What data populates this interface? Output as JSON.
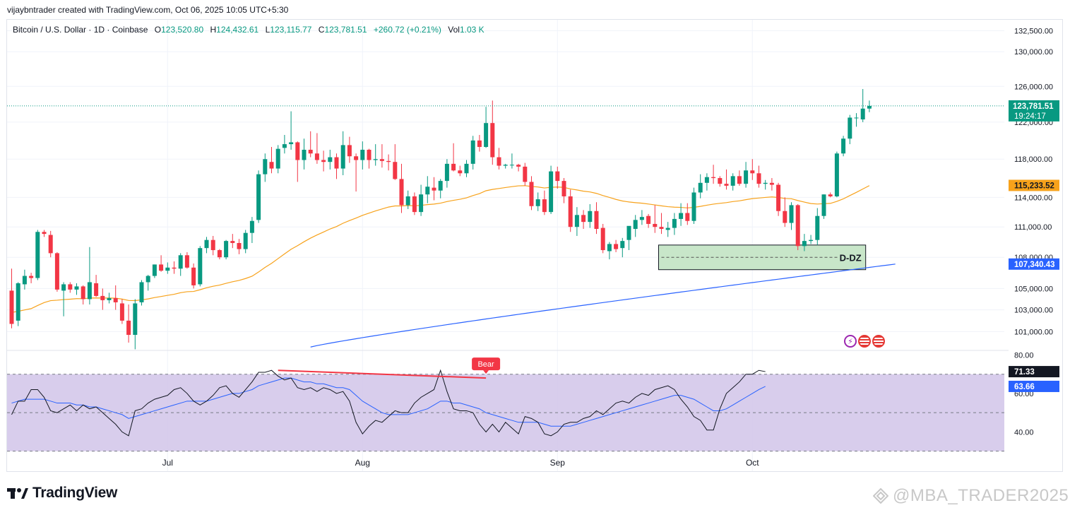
{
  "header": {
    "credit": "vijaybntrader created with TradingView.com, Oct 06, 2025 10:05 UTC+5:30"
  },
  "legend": {
    "symbol": "Bitcoin / U.S. Dollar · 1D · Coinbase",
    "o_label": "O",
    "o": "123,520.80",
    "h_label": "H",
    "h": "124,432.61",
    "l_label": "L",
    "l": "123,115.77",
    "c_label": "C",
    "c": "123,781.51",
    "change": "+260.72 (+0.21%)",
    "vol_label": "Vol",
    "vol": "1.03 K"
  },
  "colors": {
    "up": "#089981",
    "down": "#f23645",
    "ema50": "#f7a21b",
    "ema200": "#2962ff",
    "rsi": "#131722",
    "rsi_ma": "#2962ff",
    "rsi_band": "#d1c4e9",
    "bear": "#f23645"
  },
  "chart_data": {
    "type": "candlestick",
    "price_axis": {
      "ticks": [
        132500,
        130000,
        126000,
        122000,
        118000,
        114000,
        111000,
        108000,
        105000,
        103000,
        101000
      ],
      "tick_labels": [
        "132,500.00",
        "130,000.00",
        "126,000.00",
        "122,000.00",
        "118,000.00",
        "114,000.00",
        "111,000.00",
        "108,000.00",
        "105,000.00",
        "103,000.00",
        "101,000.00"
      ],
      "scale": "log",
      "range": [
        99300,
        133800
      ]
    },
    "x_axis": {
      "labels": [
        "Jul",
        "Aug",
        "Sep",
        "Oct"
      ],
      "label_bar_index": [
        24,
        54,
        84,
        114
      ]
    },
    "candles": [
      [
        104800,
        106900,
        101300,
        101700
      ],
      [
        102000,
        105600,
        101500,
        105500
      ],
      [
        105400,
        106800,
        104900,
        106200
      ],
      [
        106200,
        106500,
        105500,
        106000
      ],
      [
        106000,
        110700,
        105800,
        110500
      ],
      [
        110500,
        110700,
        110000,
        110300
      ],
      [
        110200,
        110600,
        108000,
        108400
      ],
      [
        108400,
        108500,
        104700,
        104900
      ],
      [
        104800,
        105600,
        102400,
        105400
      ],
      [
        105400,
        105600,
        104600,
        104900
      ],
      [
        104900,
        105500,
        104400,
        105200
      ],
      [
        105200,
        105300,
        103500,
        104000
      ],
      [
        104000,
        109000,
        103500,
        105600
      ],
      [
        105500,
        106300,
        104200,
        104300
      ],
      [
        104300,
        105000,
        103000,
        103900
      ],
      [
        103900,
        104600,
        103600,
        104100
      ],
      [
        104100,
        105300,
        103000,
        103700
      ],
      [
        103600,
        104000,
        101700,
        102000
      ],
      [
        102000,
        103500,
        100000,
        100700
      ],
      [
        100700,
        104000,
        99400,
        103600
      ],
      [
        103700,
        105800,
        103400,
        105600
      ],
      [
        105600,
        106300,
        104800,
        106200
      ],
      [
        106200,
        107300,
        106000,
        107300
      ],
      [
        107300,
        108200,
        106600,
        106700
      ],
      [
        106700,
        107500,
        106400,
        107000
      ],
      [
        107000,
        107600,
        106400,
        106900
      ],
      [
        106900,
        108400,
        106200,
        108200
      ],
      [
        108200,
        108500,
        106900,
        107000
      ],
      [
        107000,
        107400,
        105000,
        105300
      ],
      [
        105400,
        109100,
        105200,
        108900
      ],
      [
        108900,
        110000,
        108400,
        109700
      ],
      [
        109700,
        110100,
        108200,
        108700
      ],
      [
        108700,
        108800,
        107800,
        108000
      ],
      [
        108000,
        109700,
        107800,
        109600
      ],
      [
        109600,
        110300,
        108900,
        109400
      ],
      [
        109400,
        109800,
        108300,
        108800
      ],
      [
        108800,
        110700,
        108400,
        110400
      ],
      [
        110400,
        112000,
        109400,
        111600
      ],
      [
        111700,
        116800,
        111400,
        116400
      ],
      [
        116400,
        118600,
        115600,
        118000
      ],
      [
        117700,
        119300,
        116500,
        117000
      ],
      [
        117000,
        119500,
        116500,
        119100
      ],
      [
        119200,
        120600,
        118600,
        119600
      ],
      [
        119600,
        123200,
        119000,
        119800
      ],
      [
        119800,
        119900,
        115600,
        117900
      ],
      [
        117900,
        120200,
        116900,
        119000
      ],
      [
        119000,
        121000,
        118200,
        118600
      ],
      [
        118600,
        120800,
        117500,
        117900
      ],
      [
        117900,
        118900,
        116700,
        117700
      ],
      [
        117700,
        119000,
        116900,
        118200
      ],
      [
        118200,
        118600,
        115900,
        117000
      ],
      [
        117000,
        121000,
        116300,
        119500
      ],
      [
        119500,
        120400,
        117600,
        118300
      ],
      [
        118300,
        118600,
        114600,
        117900
      ],
      [
        117900,
        119900,
        116900,
        119000
      ],
      [
        119000,
        119100,
        117000,
        117900
      ],
      [
        117900,
        119600,
        117300,
        118000
      ],
      [
        118000,
        119600,
        117100,
        117800
      ],
      [
        117800,
        118500,
        116800,
        117700
      ],
      [
        117700,
        119600,
        115800,
        115900
      ],
      [
        115900,
        117500,
        112400,
        113200
      ],
      [
        113200,
        114700,
        112800,
        114100
      ],
      [
        114100,
        114500,
        112200,
        112500
      ],
      [
        112500,
        115300,
        112100,
        114300
      ],
      [
        114300,
        116200,
        113400,
        115100
      ],
      [
        115000,
        116100,
        113700,
        114700
      ],
      [
        114700,
        115900,
        113900,
        115700
      ],
      [
        115700,
        118000,
        115000,
        117500
      ],
      [
        117500,
        119700,
        116700,
        116800
      ],
      [
        116800,
        117300,
        116200,
        116500
      ],
      [
        116500,
        117900,
        116100,
        117500
      ],
      [
        117500,
        120500,
        116900,
        120000
      ],
      [
        120000,
        120600,
        118800,
        119300
      ],
      [
        119300,
        123700,
        119200,
        121900
      ],
      [
        121900,
        124400,
        117400,
        118200
      ],
      [
        118200,
        119200,
        116900,
        117300
      ],
      [
        117300,
        117500,
        117000,
        117400
      ],
      [
        117400,
        118600,
        117000,
        117400
      ],
      [
        117400,
        117500,
        116700,
        117200
      ],
      [
        117200,
        117600,
        115200,
        115600
      ],
      [
        115600,
        116200,
        112700,
        113100
      ],
      [
        113100,
        114500,
        112600,
        113800
      ],
      [
        113800,
        114700,
        112200,
        112500
      ],
      [
        112500,
        117300,
        112300,
        116700
      ],
      [
        116700,
        117200,
        114900,
        115700
      ],
      [
        115700,
        116000,
        113400,
        114100
      ],
      [
        114100,
        114800,
        110500,
        111000
      ],
      [
        111000,
        113000,
        110100,
        112200
      ],
      [
        112200,
        112700,
        110800,
        111500
      ],
      [
        111500,
        113300,
        110900,
        112600
      ],
      [
        112600,
        113500,
        110300,
        110800
      ],
      [
        110900,
        111300,
        108400,
        108700
      ],
      [
        108600,
        109500,
        107800,
        109300
      ],
      [
        109300,
        109700,
        108500,
        108800
      ],
      [
        108900,
        109900,
        108000,
        109600
      ],
      [
        109700,
        111000,
        108700,
        111100
      ],
      [
        110800,
        112200,
        110000,
        111700
      ],
      [
        111700,
        112700,
        111200,
        112000
      ],
      [
        112100,
        112300,
        110900,
        111300
      ],
      [
        111300,
        113200,
        110400,
        111000
      ],
      [
        111000,
        112400,
        110300,
        110800
      ],
      [
        110700,
        111500,
        110000,
        110900
      ],
      [
        110900,
        112400,
        110200,
        111800
      ],
      [
        111800,
        113400,
        111100,
        112400
      ],
      [
        112400,
        113400,
        111200,
        111600
      ],
      [
        111600,
        115000,
        111300,
        114500
      ],
      [
        114500,
        116400,
        113900,
        115500
      ],
      [
        115500,
        116500,
        114700,
        116100
      ],
      [
        116100,
        117400,
        115400,
        116000
      ],
      [
        116000,
        116200,
        115100,
        115400
      ],
      [
        115400,
        116900,
        114800,
        115200
      ],
      [
        115200,
        116500,
        114700,
        116200
      ],
      [
        116200,
        116800,
        115200,
        115400
      ],
      [
        115400,
        117700,
        115000,
        116800
      ],
      [
        116800,
        118000,
        115800,
        116500
      ],
      [
        116500,
        117300,
        115000,
        115400
      ],
      [
        115400,
        115800,
        114800,
        115500
      ],
      [
        115500,
        116000,
        114700,
        115300
      ],
      [
        115300,
        115500,
        112100,
        112600
      ],
      [
        112600,
        114000,
        111000,
        111400
      ],
      [
        111400,
        113500,
        110700,
        113200
      ],
      [
        113200,
        113300,
        108700,
        109100
      ],
      [
        109100,
        110300,
        108600,
        109600
      ],
      [
        109600,
        110200,
        109300,
        109700
      ],
      [
        109700,
        112900,
        109200,
        112100
      ],
      [
        112100,
        114300,
        111800,
        114300
      ],
      [
        114300,
        114500,
        114000,
        114100
      ],
      [
        114100,
        118800,
        114000,
        118600
      ],
      [
        118600,
        120500,
        118300,
        120200
      ],
      [
        120200,
        122800,
        119600,
        122500
      ],
      [
        122500,
        123000,
        121500,
        122500
      ],
      [
        122300,
        125700,
        122000,
        123500
      ],
      [
        123500,
        124400,
        123100,
        123800
      ]
    ],
    "ema50_ends": [
      [
        -1,
        102800
      ],
      [
        136,
        115233.52
      ]
    ],
    "ema200_ends": [
      [
        46,
        99600
      ],
      [
        136,
        107340.43
      ]
    ],
    "series": [
      {
        "name": "Close",
        "last_label": "123,781.51",
        "timer": "19:24:17"
      },
      {
        "name": "EMA 50",
        "last_label": "115,233.52"
      },
      {
        "name": "EMA 200",
        "last_label": "107,340.43"
      }
    ],
    "zone": {
      "label": "D-DZ",
      "from_bar": 100,
      "to_bar": 131,
      "high": 109200,
      "low": 106800
    },
    "rsi": {
      "ticks": [
        80,
        60,
        40
      ],
      "tick_labels": [
        "80.00",
        "60.00",
        "40.00"
      ],
      "band": [
        70,
        30
      ],
      "range": [
        24,
        82
      ],
      "values": [
        49,
        56,
        56,
        62,
        62,
        58,
        51,
        50,
        52,
        54,
        51,
        54,
        52,
        53,
        50,
        47,
        44,
        40,
        38,
        51,
        52,
        55,
        57,
        58,
        59,
        62,
        63,
        60,
        56,
        54,
        56,
        59,
        63,
        64,
        60,
        58,
        62,
        66,
        71,
        71,
        72,
        69,
        67,
        68,
        63,
        62,
        63,
        61,
        63,
        62,
        60,
        61,
        56,
        45,
        39,
        43,
        46,
        45,
        48,
        51,
        50,
        50,
        55,
        58,
        60,
        62,
        72,
        61,
        52,
        51,
        51,
        50,
        44,
        40,
        44,
        40,
        45,
        42,
        39,
        48,
        47,
        45,
        39,
        38,
        40,
        44,
        45,
        45,
        47,
        48,
        51,
        49,
        52,
        55,
        56,
        55,
        58,
        60,
        59,
        62,
        63,
        64,
        62,
        57,
        53,
        48,
        46,
        41,
        41,
        52,
        60,
        63,
        66,
        70,
        70,
        72,
        71.33
      ],
      "ma_values": [
        55,
        56,
        57,
        57,
        57,
        57,
        56,
        55,
        55,
        55,
        54,
        54,
        53,
        53,
        52,
        51,
        50,
        49,
        47,
        48,
        49,
        50,
        51,
        52,
        53,
        54,
        55,
        56,
        56,
        56,
        56,
        57,
        58,
        59,
        60,
        60,
        61,
        62,
        64,
        65,
        66,
        67,
        68,
        68,
        67,
        66,
        66,
        65,
        65,
        64,
        63,
        63,
        62,
        59,
        56,
        54,
        52,
        50,
        49,
        49,
        49,
        49,
        50,
        51,
        52,
        54,
        56,
        56,
        55,
        55,
        54,
        53,
        52,
        50,
        49,
        48,
        47,
        46,
        45,
        45,
        45,
        45,
        44,
        43,
        43,
        43,
        43,
        44,
        45,
        46,
        47,
        48,
        49,
        50,
        51,
        52,
        53,
        54,
        55,
        56,
        57,
        58,
        59,
        59,
        58,
        57,
        55,
        53,
        51,
        51,
        52,
        54,
        56,
        58,
        60,
        62,
        63.66
      ],
      "last_label": "71.33",
      "ma_label": "63.66",
      "divergence": {
        "from_bar": 41,
        "from_value": 72,
        "to_bar": 73,
        "to_value": 68,
        "label": "Bear"
      }
    }
  },
  "brand": {
    "name": "TradingView",
    "logo": "tv-logo-icon"
  },
  "watermark": {
    "text": "@MBA_TRADER2025",
    "icon": "watermark-diamond-icon"
  },
  "event_icons": [
    "bolt-icon",
    "us-flag-icon",
    "us-flag-icon"
  ]
}
